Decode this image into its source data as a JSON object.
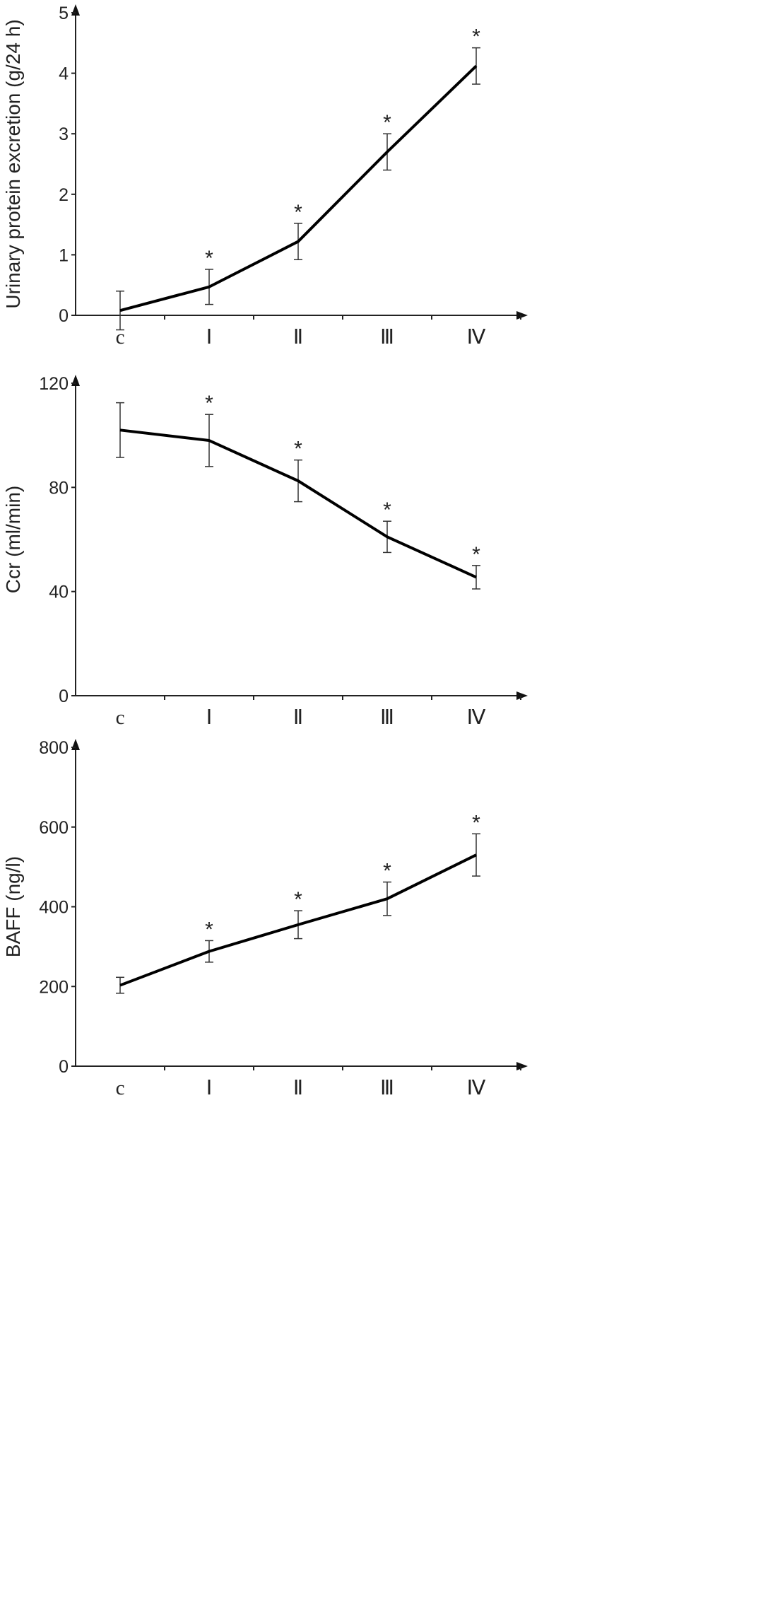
{
  "chart_data": [
    {
      "type": "line",
      "categories": [
        "c",
        "Ⅰ",
        "Ⅱ",
        "Ⅲ",
        "Ⅳ"
      ],
      "values": [
        0.08,
        0.47,
        1.22,
        2.7,
        4.12
      ],
      "errors": [
        0.32,
        0.29,
        0.3,
        0.3,
        0.3
      ],
      "markers": [
        "",
        "*",
        "*",
        "*",
        "*"
      ],
      "ylabel": "Urinary protein excretion (g/24 h)",
      "xlabel": "",
      "ylim": [
        0,
        5
      ],
      "yticks": [
        0,
        1,
        2,
        3,
        4,
        5
      ],
      "grid": false
    },
    {
      "type": "line",
      "categories": [
        "c",
        "Ⅰ",
        "Ⅱ",
        "Ⅲ",
        "Ⅳ"
      ],
      "values": [
        102,
        98,
        82.5,
        61,
        45.5
      ],
      "errors": [
        10.5,
        10,
        8,
        6,
        4.5
      ],
      "markers": [
        "",
        "*",
        "*",
        "*",
        "*"
      ],
      "ylabel": "Ccr (ml/min)",
      "xlabel": "",
      "ylim": [
        0,
        120
      ],
      "yticks": [
        0,
        40,
        80,
        120
      ],
      "grid": false
    },
    {
      "type": "line",
      "categories": [
        "c",
        "Ⅰ",
        "Ⅱ",
        "Ⅲ",
        "Ⅳ"
      ],
      "values": [
        203,
        288,
        355,
        420,
        530
      ],
      "errors": [
        20,
        27,
        35,
        42,
        53
      ],
      "markers": [
        "",
        "*",
        "*",
        "*",
        "*"
      ],
      "ylabel": "BAFF (ng/l)",
      "xlabel": "",
      "ylim": [
        0,
        800
      ],
      "yticks": [
        0,
        200,
        400,
        600,
        800
      ],
      "grid": false
    }
  ]
}
